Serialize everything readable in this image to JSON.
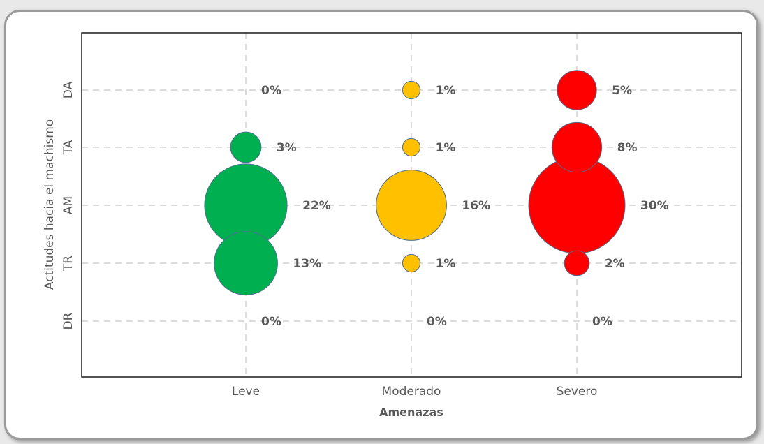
{
  "chart_data": {
    "type": "bubble",
    "title": "",
    "xlabel": "Amenazas",
    "ylabel": "Actitudes hacia el machismo",
    "categories": [
      "Leve",
      "Moderado",
      "Severo"
    ],
    "y_categories": [
      "DR",
      "TR",
      "AM",
      "TA",
      "DA"
    ],
    "grid": true,
    "series": [
      {
        "category": "Leve",
        "color": "#00b050",
        "points": [
          {
            "y": "DR",
            "value": 0,
            "label": "0%"
          },
          {
            "y": "TR",
            "value": 13,
            "label": "13%"
          },
          {
            "y": "AM",
            "value": 22,
            "label": "22%"
          },
          {
            "y": "TA",
            "value": 3,
            "label": "3%"
          },
          {
            "y": "DA",
            "value": 0,
            "label": "0%"
          }
        ]
      },
      {
        "category": "Moderado",
        "color": "#ffc000",
        "points": [
          {
            "y": "DR",
            "value": 0,
            "label": "0%"
          },
          {
            "y": "TR",
            "value": 1,
            "label": "1%"
          },
          {
            "y": "AM",
            "value": 16,
            "label": "16%"
          },
          {
            "y": "TA",
            "value": 1,
            "label": "1%"
          },
          {
            "y": "DA",
            "value": 1,
            "label": "1%"
          }
        ]
      },
      {
        "category": "Severo",
        "color": "#ff0000",
        "points": [
          {
            "y": "DR",
            "value": 0,
            "label": "0%"
          },
          {
            "y": "TR",
            "value": 2,
            "label": "2%"
          },
          {
            "y": "AM",
            "value": 30,
            "label": "30%"
          },
          {
            "y": "TA",
            "value": 8,
            "label": "8%"
          },
          {
            "y": "DA",
            "value": 5,
            "label": "5%"
          }
        ]
      }
    ]
  }
}
